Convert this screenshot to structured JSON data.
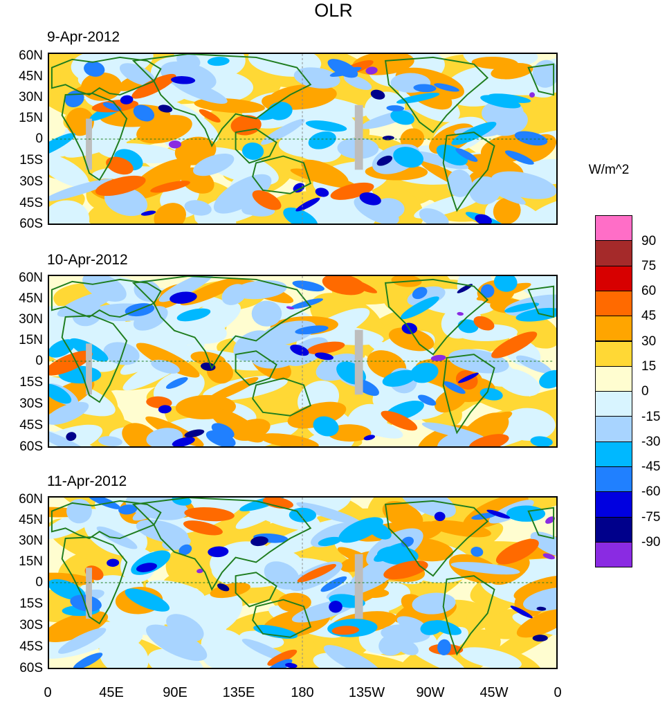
{
  "title": "OLR",
  "units": "W/m^2",
  "panels": [
    {
      "date": "9-Apr-2012"
    },
    {
      "date": "10-Apr-2012"
    },
    {
      "date": "11-Apr-2012"
    }
  ],
  "lat_labels": [
    "60N",
    "45N",
    "30N",
    "15N",
    "0",
    "15S",
    "30S",
    "45S",
    "60S"
  ],
  "lon_labels": [
    "0",
    "45E",
    "90E",
    "135E",
    "180",
    "135W",
    "90W",
    "45W",
    "0"
  ],
  "colorbar": {
    "labels": [
      "90",
      "75",
      "60",
      "45",
      "30",
      "15",
      "0",
      "-15",
      "-30",
      "-45",
      "-60",
      "-75",
      "-90"
    ],
    "colors": [
      "#ff6ec7",
      "#a52a2a",
      "#d70000",
      "#ff6a00",
      "#ffa500",
      "#ffd835",
      "#fffdd0",
      "#d8f4ff",
      "#a8d4ff",
      "#00b8ff",
      "#2080ff",
      "#0000e0",
      "#00008b",
      "#8a2be2"
    ]
  }
}
